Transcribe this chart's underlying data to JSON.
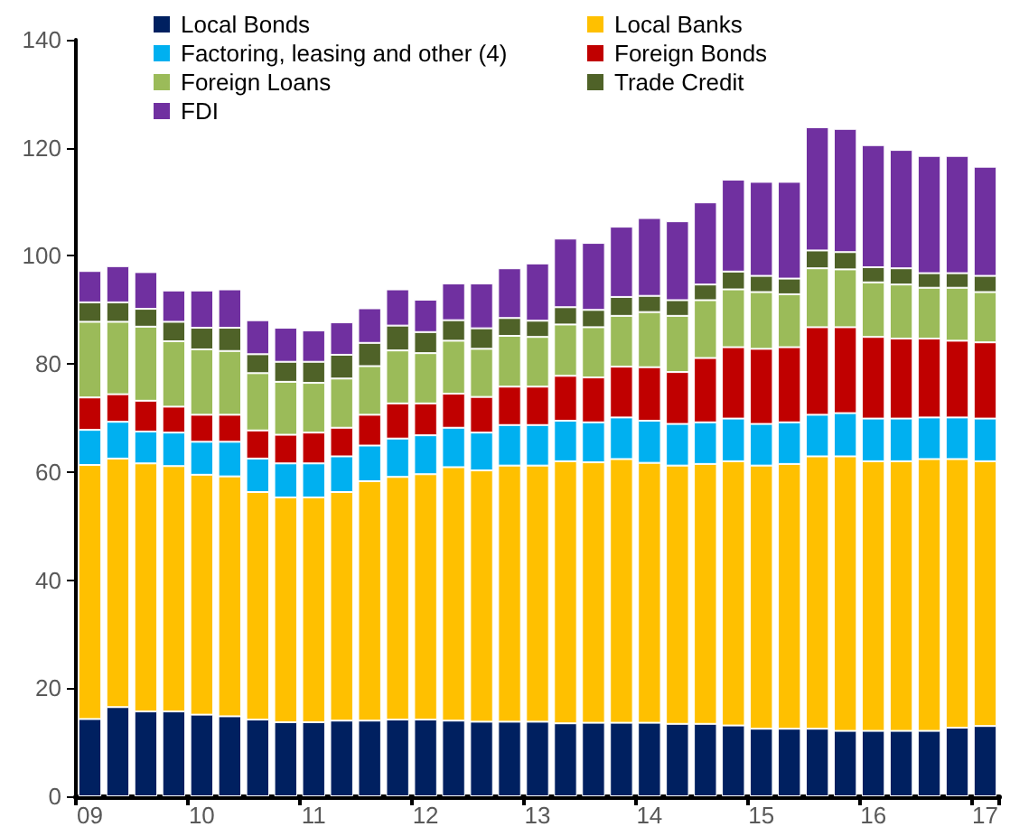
{
  "chart_data": {
    "type": "bar",
    "stacked": true,
    "legend": "top",
    "grid": false,
    "categories": [
      "09",
      null,
      null,
      null,
      "10",
      null,
      null,
      null,
      "11",
      null,
      null,
      null,
      "12",
      null,
      null,
      null,
      "13",
      null,
      null,
      null,
      "14",
      null,
      null,
      null,
      "15",
      null,
      null,
      null,
      "16",
      null,
      null,
      null,
      "17"
    ],
    "ylim": [
      0,
      140
    ],
    "yticks": [
      0,
      20,
      40,
      60,
      80,
      100,
      120,
      140
    ],
    "series": [
      {
        "name": "Local Bonds",
        "color": "#002060",
        "values": [
          14.3,
          16.5,
          15.7,
          15.7,
          15.1,
          14.8,
          14.2,
          13.7,
          13.7,
          14.0,
          14.0,
          14.2,
          14.2,
          14.0,
          13.8,
          13.8,
          13.8,
          13.5,
          13.6,
          13.6,
          13.6,
          13.4,
          13.4,
          13.1,
          12.5,
          12.5,
          12.5,
          12.1,
          12.1,
          12.1,
          12.1,
          12.7,
          13.0
        ]
      },
      {
        "name": "Local Banks",
        "color": "#ffc000",
        "values": [
          47.0,
          46.0,
          45.9,
          45.4,
          44.4,
          44.4,
          42.1,
          41.6,
          41.6,
          42.3,
          44.3,
          44.9,
          45.4,
          46.9,
          46.5,
          47.4,
          47.4,
          48.5,
          48.2,
          48.8,
          48.1,
          47.8,
          48.1,
          48.9,
          48.7,
          49.0,
          50.4,
          50.8,
          49.9,
          49.9,
          50.3,
          49.7,
          49.0
        ]
      },
      {
        "name": "Factoring, leasing and other (4)",
        "color": "#00b0f0",
        "values": [
          6.5,
          6.8,
          5.9,
          6.2,
          6.1,
          6.4,
          6.2,
          6.3,
          6.3,
          6.6,
          6.6,
          7.1,
          7.2,
          7.3,
          7.0,
          7.5,
          7.5,
          7.5,
          7.4,
          7.7,
          7.8,
          7.7,
          7.7,
          7.9,
          7.7,
          7.7,
          7.7,
          8.0,
          7.9,
          7.9,
          7.7,
          7.7,
          7.9
        ]
      },
      {
        "name": "Foreign Bonds",
        "color": "#c00000",
        "values": [
          6.0,
          5.1,
          5.7,
          4.8,
          5.0,
          5.0,
          5.2,
          5.3,
          5.7,
          5.3,
          5.7,
          6.5,
          5.9,
          6.3,
          6.6,
          7.1,
          7.1,
          8.3,
          8.3,
          9.4,
          9.9,
          9.6,
          11.9,
          13.2,
          13.9,
          13.9,
          16.2,
          15.9,
          15.1,
          14.8,
          14.6,
          14.2,
          14.1
        ]
      },
      {
        "name": "Foreign Loans",
        "color": "#9bbb59",
        "values": [
          14.0,
          13.4,
          13.7,
          12.1,
          12.1,
          11.8,
          10.6,
          9.8,
          9.2,
          9.1,
          9.0,
          9.8,
          9.3,
          9.8,
          8.9,
          9.4,
          9.2,
          9.5,
          9.3,
          9.4,
          10.2,
          10.4,
          10.7,
          10.7,
          10.5,
          9.8,
          10.9,
          10.7,
          10.1,
          10.0,
          9.4,
          9.8,
          9.3
        ]
      },
      {
        "name": "Trade Credit",
        "color": "#4f6228",
        "values": [
          3.6,
          3.6,
          3.3,
          3.6,
          4.0,
          4.3,
          3.5,
          3.7,
          3.9,
          4.4,
          4.3,
          4.6,
          3.9,
          3.8,
          3.8,
          3.3,
          3.0,
          3.2,
          3.2,
          3.5,
          3.0,
          2.9,
          2.9,
          3.3,
          3.0,
          2.9,
          3.3,
          3.2,
          2.8,
          3.0,
          2.7,
          2.7,
          3.0
        ]
      },
      {
        "name": "FDI",
        "color": "#7030a0",
        "values": [
          5.8,
          6.7,
          6.8,
          5.8,
          6.9,
          7.1,
          6.3,
          6.3,
          5.8,
          6.0,
          6.4,
          6.7,
          6.0,
          6.8,
          8.3,
          9.2,
          10.6,
          12.7,
          12.4,
          13.0,
          14.4,
          14.6,
          15.2,
          17.0,
          17.4,
          17.9,
          22.8,
          22.8,
          22.6,
          21.9,
          21.7,
          21.7,
          20.2
        ]
      }
    ]
  }
}
